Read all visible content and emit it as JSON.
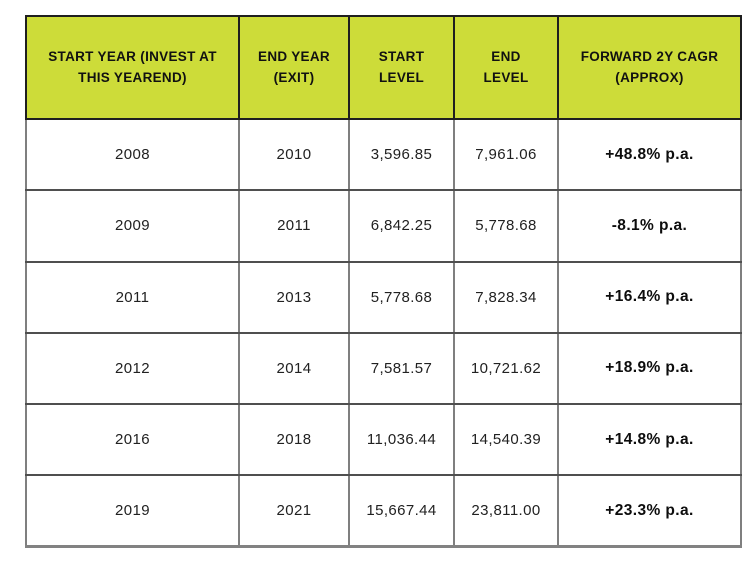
{
  "colors": {
    "header_bg": "#cddc39",
    "header_text": "#111111",
    "body_text": "#212121",
    "outer_border": "#1a1a1a",
    "inner_border_gray": "#7f7f7f",
    "row_line_gray": "#4f4f4f"
  },
  "table": {
    "headers": [
      {
        "line1": "START YEAR (INVEST AT",
        "line2": "THIS YEAREND)"
      },
      {
        "line1": "END YEAR",
        "line2": "(EXIT)"
      },
      {
        "line1": "START",
        "line2": "LEVEL"
      },
      {
        "line1": "END",
        "line2": "LEVEL"
      },
      {
        "line1": "FORWARD 2Y CAGR",
        "line2": "(APPROX)"
      }
    ],
    "rows": [
      {
        "cells": [
          "2008",
          "2010",
          "3,596.85",
          "7,961.06",
          "+48.8% p.a."
        ]
      },
      {
        "cells": [
          "2009",
          "2011",
          "6,842.25",
          "5,778.68",
          "-8.1% p.a."
        ]
      },
      {
        "cells": [
          "2011",
          "2013",
          "5,778.68",
          "7,828.34",
          "+16.4% p.a."
        ]
      },
      {
        "cells": [
          "2012",
          "2014",
          "7,581.57",
          "10,721.62",
          "+18.9% p.a."
        ]
      },
      {
        "cells": [
          "2016",
          "2018",
          "11,036.44",
          "14,540.39",
          "+14.8% p.a."
        ]
      },
      {
        "cells": [
          "2019",
          "2021",
          "15,667.44",
          "23,811.00",
          "+23.3% p.a."
        ]
      }
    ]
  },
  "chart_data": {
    "type": "table",
    "title": "",
    "columns": [
      "START YEAR (INVEST AT THIS YEAREND)",
      "END YEAR (EXIT)",
      "START LEVEL",
      "END LEVEL",
      "FORWARD 2Y CAGR (APPROX)"
    ],
    "rows": [
      [
        "2008",
        "2010",
        "3,596.85",
        "7,961.06",
        "+48.8% p.a."
      ],
      [
        "2009",
        "2011",
        "6,842.25",
        "5,778.68",
        "-8.1% p.a."
      ],
      [
        "2011",
        "2013",
        "5,778.68",
        "7,828.34",
        "+16.4% p.a."
      ],
      [
        "2012",
        "2014",
        "7,581.57",
        "10,721.62",
        "+18.9% p.a."
      ],
      [
        "2016",
        "2018",
        "11,036.44",
        "14,540.39",
        "+14.8% p.a."
      ],
      [
        "2019",
        "2021",
        "15,667.44",
        "23,811.00",
        "+23.3% p.a."
      ]
    ],
    "numeric": {
      "start_year": [
        2008,
        2009,
        2011,
        2012,
        2016,
        2019
      ],
      "end_year": [
        2010,
        2011,
        2013,
        2014,
        2018,
        2021
      ],
      "start_level": [
        3596.85,
        6842.25,
        5778.68,
        7581.57,
        11036.44,
        15667.44
      ],
      "end_level": [
        7961.06,
        5778.68,
        7828.34,
        10721.62,
        14540.39,
        23811.0
      ],
      "forward_2y_cagr_pct": [
        48.8,
        -8.1,
        16.4,
        18.9,
        14.8,
        23.3
      ]
    }
  }
}
